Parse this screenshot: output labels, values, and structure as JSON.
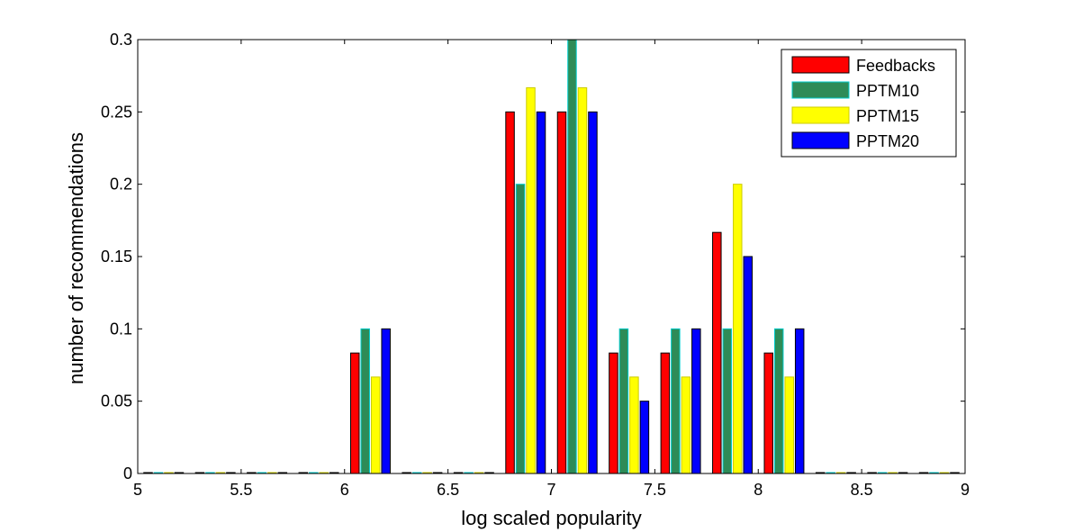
{
  "chart_data": {
    "type": "bar",
    "xlabel": "log scaled popularity",
    "ylabel": "number of recommendations",
    "xlim": [
      5,
      9
    ],
    "ylim": [
      0,
      0.3
    ],
    "x_ticks": [
      "5",
      "5.5",
      "6",
      "6.5",
      "7",
      "7.5",
      "8",
      "8.5",
      "9"
    ],
    "y_ticks": [
      "0",
      "0.05",
      "0.1",
      "0.15",
      "0.2",
      "0.25",
      "0.3"
    ],
    "x": [
      5.125,
      5.375,
      5.625,
      5.875,
      6.125,
      6.375,
      6.625,
      6.875,
      7.125,
      7.375,
      7.625,
      7.875,
      8.125,
      8.375,
      8.625,
      8.875
    ],
    "series": [
      {
        "name": "Feedbacks",
        "color": "#ff0000",
        "edge": "#000000",
        "values": [
          0,
          0,
          0,
          0,
          0.0833,
          0,
          0,
          0.25,
          0.25,
          0.0833,
          0.0833,
          0.1667,
          0.0833,
          0,
          0,
          0
        ]
      },
      {
        "name": "PPTM10",
        "color": "#2e8b57",
        "edge": "#00cccc",
        "values": [
          0,
          0,
          0,
          0,
          0.1,
          0,
          0,
          0.2,
          0.3,
          0.1,
          0.1,
          0.1,
          0.1,
          0,
          0,
          0
        ]
      },
      {
        "name": "PPTM15",
        "color": "#ffff00",
        "edge": "#cccc00",
        "values": [
          0,
          0,
          0,
          0,
          0.0667,
          0,
          0,
          0.2667,
          0.2667,
          0.0667,
          0.0667,
          0.2,
          0.0667,
          0,
          0,
          0
        ]
      },
      {
        "name": "PPTM20",
        "color": "#0000ff",
        "edge": "#000000",
        "values": [
          0,
          0,
          0,
          0,
          0.1,
          0,
          0,
          0.25,
          0.25,
          0.05,
          0.1,
          0.15,
          0.1,
          0,
          0,
          0
        ]
      }
    ],
    "legend_position": "top-right",
    "grid": false
  }
}
